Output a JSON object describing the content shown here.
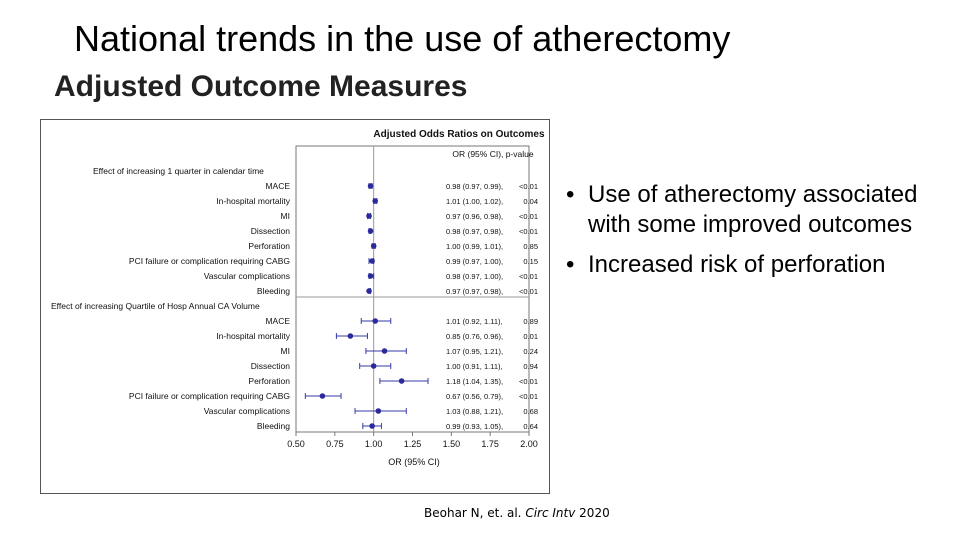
{
  "slide": {
    "title": "National trends in the use of atherectomy",
    "subtitle": "Adjusted Outcome Measures",
    "bullets": [
      "Use of atherectomy associated with some improved outcomes",
      "Increased risk of perforation"
    ],
    "citation": {
      "authors": "Beohar N, et. al.",
      "journal": "Circ Intv",
      "year": "2020"
    }
  },
  "chart_data": {
    "type": "forest",
    "title": "Adjusted Odds Ratios on Outcomes",
    "column_header": "OR (95% CI), p-value",
    "xlabel": "OR (95% CI)",
    "xlim": [
      0.5,
      2.0
    ],
    "xticks": [
      "0.50",
      "0.75",
      "1.00",
      "1.25",
      "1.50",
      "1.75",
      "2.00"
    ],
    "reference_line": 1.0,
    "groups": [
      {
        "label": "Effect of increasing 1 quarter in calendar time",
        "rows": [
          {
            "label": "MACE",
            "or": 0.98,
            "lo": 0.97,
            "hi": 0.99,
            "text": "0.98 (0.97, 0.99),",
            "p": "<0.01"
          },
          {
            "label": "In-hospital mortality",
            "or": 1.01,
            "lo": 1.0,
            "hi": 1.02,
            "text": "1.01 (1.00, 1.02),",
            "p": "0.04"
          },
          {
            "label": "MI",
            "or": 0.97,
            "lo": 0.96,
            "hi": 0.98,
            "text": "0.97 (0.96, 0.98),",
            "p": "<0.01"
          },
          {
            "label": "Dissection",
            "or": 0.98,
            "lo": 0.97,
            "hi": 0.98,
            "text": "0.98 (0.97, 0.98),",
            "p": "<0.01"
          },
          {
            "label": "Perforation",
            "or": 1.0,
            "lo": 0.99,
            "hi": 1.01,
            "text": "1.00 (0.99, 1.01),",
            "p": "0.85"
          },
          {
            "label": "PCI failure or complication requiring CABG",
            "or": 0.99,
            "lo": 0.97,
            "hi": 1.0,
            "text": "0.99 (0.97, 1.00),",
            "p": "0.15"
          },
          {
            "label": "Vascular complications",
            "or": 0.98,
            "lo": 0.97,
            "hi": 1.0,
            "text": "0.98 (0.97, 1.00),",
            "p": "<0.01"
          },
          {
            "label": "Bleeding",
            "or": 0.97,
            "lo": 0.97,
            "hi": 0.98,
            "text": "0.97 (0.97, 0.98),",
            "p": "<0.01"
          }
        ]
      },
      {
        "label": "Effect of increasing Quartile of Hosp Annual CA Volume",
        "rows": [
          {
            "label": "MACE",
            "or": 1.01,
            "lo": 0.92,
            "hi": 1.11,
            "text": "1.01 (0.92, 1.11),",
            "p": "0.89"
          },
          {
            "label": "In-hospital mortality",
            "or": 0.85,
            "lo": 0.76,
            "hi": 0.96,
            "text": "0.85 (0.76, 0.96),",
            "p": "0.01"
          },
          {
            "label": "MI",
            "or": 1.07,
            "lo": 0.95,
            "hi": 1.21,
            "text": "1.07 (0.95, 1.21),",
            "p": "0.24"
          },
          {
            "label": "Dissection",
            "or": 1.0,
            "lo": 0.91,
            "hi": 1.11,
            "text": "1.00 (0.91, 1.11),",
            "p": "0.94"
          },
          {
            "label": "Perforation",
            "or": 1.18,
            "lo": 1.04,
            "hi": 1.35,
            "text": "1.18 (1.04, 1.35),",
            "p": "<0.01"
          },
          {
            "label": "PCI failure or complication requiring CABG",
            "or": 0.67,
            "lo": 0.56,
            "hi": 0.79,
            "text": "0.67 (0.56, 0.79),",
            "p": "<0.01"
          },
          {
            "label": "Vascular complications",
            "or": 1.03,
            "lo": 0.88,
            "hi": 1.21,
            "text": "1.03 (0.88, 1.21),",
            "p": "0.68"
          },
          {
            "label": "Bleeding",
            "or": 0.99,
            "lo": 0.93,
            "hi": 1.05,
            "text": "0.99 (0.93, 1.05),",
            "p": "0.64"
          }
        ]
      }
    ],
    "colors": {
      "point": "#2a2a9a",
      "ci": "#3a3aa8",
      "frame": "#777777",
      "text": "#111111"
    }
  }
}
